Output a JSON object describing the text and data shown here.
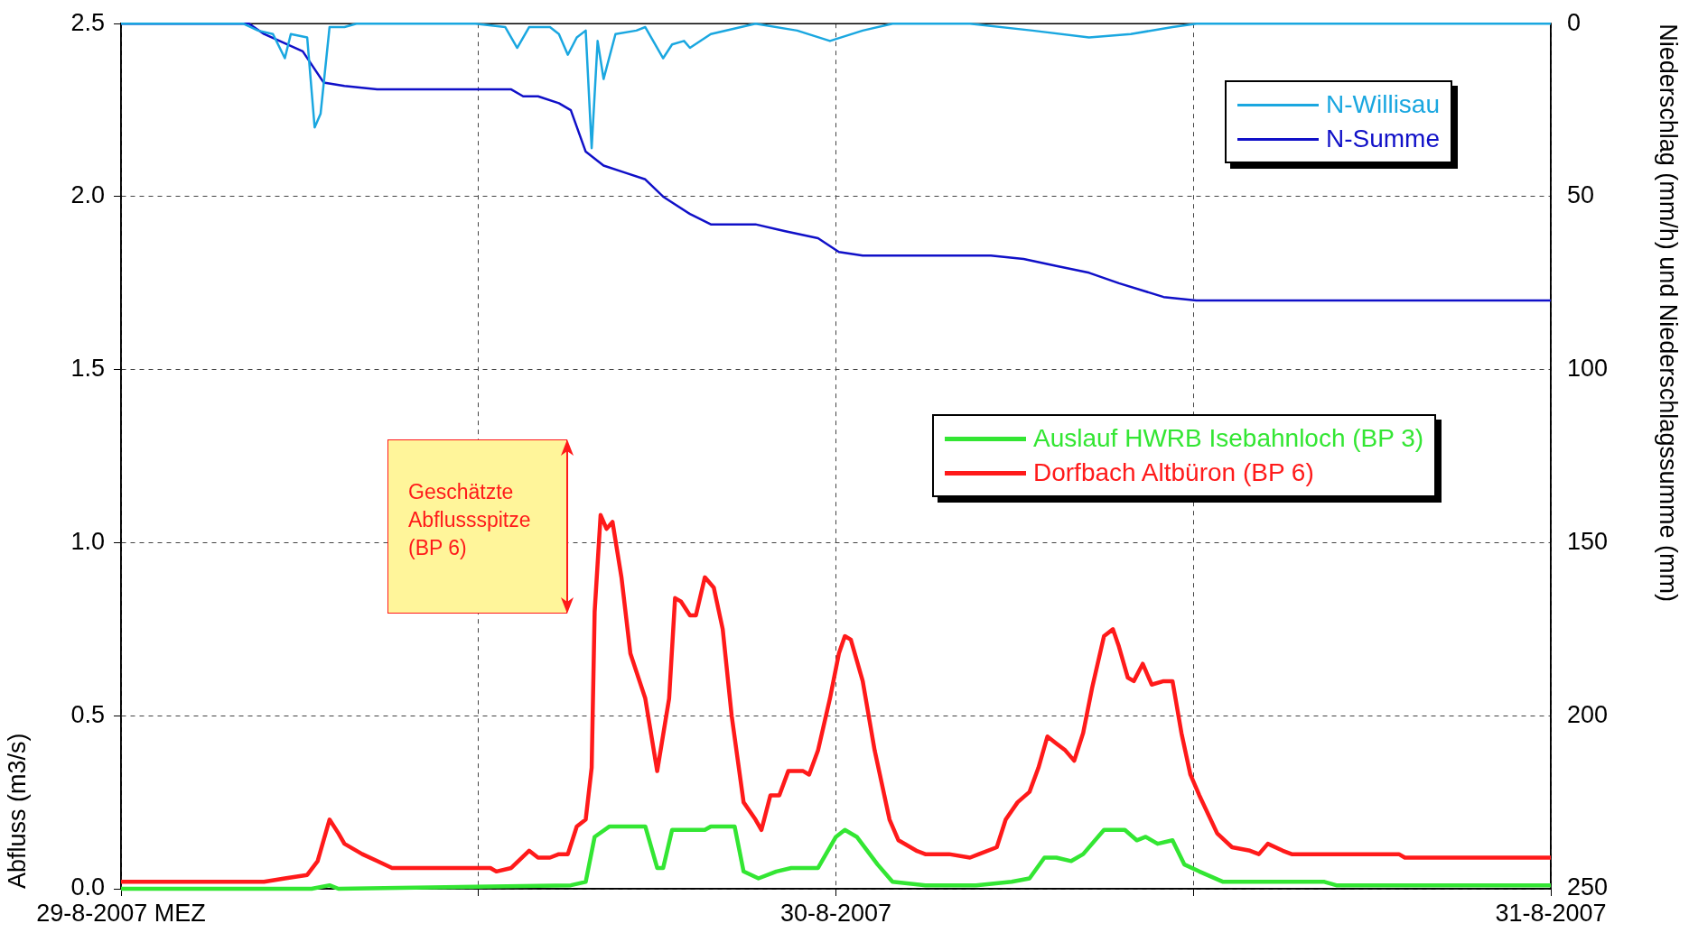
{
  "chart_data": {
    "type": "line",
    "ylabel": "Abfluss (m3/s)",
    "y2label": "Niederschlag (mm/h) und Niederschlagssumme (mm)",
    "xlim": [
      "2007-08-29T00:00",
      "2007-08-31T00:00"
    ],
    "xticks": [
      {
        "value": "2007-08-29T00:00",
        "label": "29-8-2007 MEZ"
      },
      {
        "value": "2007-08-29T12:00",
        "label": null
      },
      {
        "value": "2007-08-30T00:00",
        "label": "30-8-2007"
      },
      {
        "value": "2007-08-30T12:00",
        "label": null
      },
      {
        "value": "2007-08-31T00:00",
        "label": "31-8-2007"
      }
    ],
    "ylim": [
      0,
      2.5
    ],
    "yticks": [
      {
        "value": 0,
        "label": "0.0"
      },
      {
        "value": 0.5,
        "label": "0.5"
      },
      {
        "value": 1,
        "label": "1.0"
      },
      {
        "value": 1.5,
        "label": "1.5"
      },
      {
        "value": 2,
        "label": "2.0"
      },
      {
        "value": 2.5,
        "label": "2.5"
      }
    ],
    "y2lim": [
      250,
      0
    ],
    "y2ticks": [
      0,
      50,
      100,
      150,
      200,
      250
    ],
    "grid": true,
    "legend": "top right",
    "marker": "none",
    "line_style": "solid",
    "annotations": [
      "Geschätzte\nAbflussspitze\n(BP 6)"
    ],
    "series": [
      {
        "name": "N-Willisau",
        "color": "#1aa7e0",
        "axis": "y2",
        "x": [
          "2007-08-29T00:00",
          "2007-08-29T04:06",
          "2007-08-29T04:36",
          "2007-08-29T05:06",
          "2007-08-29T05:30",
          "2007-08-29T05:42",
          "2007-08-29T06:15",
          "2007-08-29T06:30",
          "2007-08-29T06:42",
          "2007-08-29T07:00",
          "2007-08-29T07:30",
          "2007-08-29T07:54",
          "2007-08-29T11:54",
          "2007-08-29T12:54",
          "2007-08-29T13:18",
          "2007-08-29T13:42",
          "2007-08-29T14:24",
          "2007-08-29T14:42",
          "2007-08-29T15:00",
          "2007-08-29T15:18",
          "2007-08-29T15:36",
          "2007-08-29T15:48",
          "2007-08-29T16:00",
          "2007-08-29T16:12",
          "2007-08-29T16:36",
          "2007-08-29T17:18",
          "2007-08-29T17:36",
          "2007-08-29T18:12",
          "2007-08-29T18:30",
          "2007-08-29T18:54",
          "2007-08-29T19:06",
          "2007-08-29T19:48",
          "2007-08-29T21:18",
          "2007-08-29T22:42",
          "2007-08-29T23:48",
          "2007-08-30T00:54",
          "2007-08-30T01:54",
          "2007-08-30T04:30",
          "2007-08-30T06:36",
          "2007-08-30T08:30",
          "2007-08-30T09:54",
          "2007-08-30T11:18",
          "2007-08-30T12:06",
          "2007-08-31T00:00"
        ],
        "values": [
          0,
          0,
          2,
          3,
          10,
          3,
          4,
          30,
          26,
          1,
          1,
          0,
          0,
          1,
          7,
          1,
          1,
          3,
          9,
          4,
          2,
          36,
          5,
          16,
          3,
          2,
          1,
          10,
          6,
          5,
          7,
          3,
          0,
          2,
          5,
          2,
          0,
          0,
          2,
          4,
          3,
          1,
          0,
          0
        ]
      },
      {
        "name": "N-Summe",
        "color": "#1010c8",
        "axis": "y2",
        "x": [
          "2007-08-29T00:00",
          "2007-08-29T04:18",
          "2007-08-29T04:48",
          "2007-08-29T06:06",
          "2007-08-29T06:48",
          "2007-08-29T07:30",
          "2007-08-29T08:36",
          "2007-08-29T11:06",
          "2007-08-29T13:06",
          "2007-08-29T13:30",
          "2007-08-29T14:00",
          "2007-08-29T14:42",
          "2007-08-29T15:06",
          "2007-08-29T15:36",
          "2007-08-29T16:12",
          "2007-08-29T16:54",
          "2007-08-29T17:36",
          "2007-08-29T18:12",
          "2007-08-29T19:06",
          "2007-08-29T19:48",
          "2007-08-29T21:18",
          "2007-08-29T22:18",
          "2007-08-29T23:24",
          "2007-08-30T00:06",
          "2007-08-30T00:54",
          "2007-08-30T05:12",
          "2007-08-30T06:18",
          "2007-08-30T07:24",
          "2007-08-30T08:30",
          "2007-08-30T09:30",
          "2007-08-30T11:00",
          "2007-08-30T12:06",
          "2007-08-31T00:00"
        ],
        "values": [
          0,
          0,
          3,
          8,
          17,
          18,
          19,
          19,
          19,
          21,
          21,
          23,
          25,
          37,
          41,
          43,
          45,
          50,
          55,
          58,
          58,
          60,
          62,
          66,
          67,
          67,
          68,
          70,
          72,
          75,
          79,
          80,
          80
        ]
      },
      {
        "name": "Auslauf HWRB Isebahnloch (BP 3)",
        "color": "#33e633",
        "x": [
          "2007-08-29T00:00",
          "2007-08-29T06:24",
          "2007-08-29T07:00",
          "2007-08-29T07:18",
          "2007-08-29T15:06",
          "2007-08-29T15:36",
          "2007-08-29T15:54",
          "2007-08-29T16:24",
          "2007-08-29T17:36",
          "2007-08-29T18:00",
          "2007-08-29T18:12",
          "2007-08-29T18:30",
          "2007-08-29T19:36",
          "2007-08-29T19:48",
          "2007-08-29T20:36",
          "2007-08-29T20:54",
          "2007-08-29T21:24",
          "2007-08-29T22:00",
          "2007-08-29T22:30",
          "2007-08-29T23:24",
          "2007-08-30T00:00",
          "2007-08-30T00:18",
          "2007-08-30T00:42",
          "2007-08-30T01:24",
          "2007-08-30T01:54",
          "2007-08-30T03:00",
          "2007-08-30T04:42",
          "2007-08-30T05:54",
          "2007-08-30T06:30",
          "2007-08-30T07:00",
          "2007-08-30T07:24",
          "2007-08-30T07:54",
          "2007-08-30T08:18",
          "2007-08-30T09:00",
          "2007-08-30T09:42",
          "2007-08-30T10:06",
          "2007-08-30T10:24",
          "2007-08-30T10:48",
          "2007-08-30T11:18",
          "2007-08-30T11:42",
          "2007-08-30T12:12",
          "2007-08-30T13:00",
          "2007-08-30T16:24",
          "2007-08-30T16:48",
          "2007-08-31T00:00"
        ],
        "values": [
          0,
          0,
          0.01,
          0,
          0.01,
          0.02,
          0.15,
          0.18,
          0.18,
          0.06,
          0.06,
          0.17,
          0.17,
          0.18,
          0.18,
          0.05,
          0.03,
          0.05,
          0.06,
          0.06,
          0.15,
          0.17,
          0.15,
          0.07,
          0.02,
          0.01,
          0.01,
          0.02,
          0.03,
          0.09,
          0.09,
          0.08,
          0.1,
          0.17,
          0.17,
          0.14,
          0.15,
          0.13,
          0.14,
          0.07,
          0.05,
          0.02,
          0.02,
          0.01,
          0.01
        ]
      },
      {
        "name": "Dorfbach Altbüron (BP 6)",
        "color": "#ff1a1a",
        "x": [
          "2007-08-29T00:00",
          "2007-08-29T04:48",
          "2007-08-29T05:30",
          "2007-08-29T06:15",
          "2007-08-29T06:36",
          "2007-08-29T07:00",
          "2007-08-29T07:18",
          "2007-08-29T07:30",
          "2007-08-29T08:06",
          "2007-08-29T08:36",
          "2007-08-29T09:06",
          "2007-08-29T10:24",
          "2007-08-29T12:24",
          "2007-08-29T12:36",
          "2007-08-29T13:06",
          "2007-08-29T13:42",
          "2007-08-29T14:00",
          "2007-08-29T14:24",
          "2007-08-29T14:42",
          "2007-08-29T15:00",
          "2007-08-29T15:18",
          "2007-08-29T15:36",
          "2007-08-29T15:48",
          "2007-08-29T15:54",
          "2007-08-29T16:06",
          "2007-08-29T16:18",
          "2007-08-29T16:30",
          "2007-08-29T16:48",
          "2007-08-29T17:06",
          "2007-08-29T17:36",
          "2007-08-29T18:00",
          "2007-08-29T18:24",
          "2007-08-29T18:36",
          "2007-08-29T18:48",
          "2007-08-29T19:06",
          "2007-08-29T19:18",
          "2007-08-29T19:36",
          "2007-08-29T19:54",
          "2007-08-29T20:12",
          "2007-08-29T20:30",
          "2007-08-29T20:54",
          "2007-08-29T21:18",
          "2007-08-29T21:30",
          "2007-08-29T21:48",
          "2007-08-29T22:06",
          "2007-08-29T22:24",
          "2007-08-29T22:54",
          "2007-08-29T23:06",
          "2007-08-29T23:24",
          "2007-08-29T23:48",
          "2007-08-30T00:06",
          "2007-08-30T00:18",
          "2007-08-30T00:30",
          "2007-08-30T00:54",
          "2007-08-30T01:18",
          "2007-08-30T01:48",
          "2007-08-30T02:06",
          "2007-08-30T02:42",
          "2007-08-30T03:00",
          "2007-08-30T03:48",
          "2007-08-30T04:30",
          "2007-08-30T04:48",
          "2007-08-30T05:24",
          "2007-08-30T05:42",
          "2007-08-30T06:06",
          "2007-08-30T06:30",
          "2007-08-30T06:48",
          "2007-08-30T07:06",
          "2007-08-30T07:24",
          "2007-08-30T07:42",
          "2007-08-30T08:00",
          "2007-08-30T08:18",
          "2007-08-30T08:36",
          "2007-08-30T09:00",
          "2007-08-30T09:18",
          "2007-08-30T09:30",
          "2007-08-30T09:48",
          "2007-08-30T10:00",
          "2007-08-30T10:18",
          "2007-08-30T10:36",
          "2007-08-30T11:00",
          "2007-08-30T11:18",
          "2007-08-30T11:36",
          "2007-08-30T11:54",
          "2007-08-30T12:12",
          "2007-08-30T12:48",
          "2007-08-30T13:18",
          "2007-08-30T13:54",
          "2007-08-30T14:12",
          "2007-08-30T14:30",
          "2007-08-30T15:00",
          "2007-08-30T15:18",
          "2007-08-30T18:54",
          "2007-08-30T19:06",
          "2007-08-31T00:00"
        ],
        "values": [
          0.02,
          0.02,
          0.03,
          0.04,
          0.08,
          0.2,
          0.16,
          0.13,
          0.1,
          0.08,
          0.06,
          0.06,
          0.06,
          0.05,
          0.06,
          0.11,
          0.09,
          0.09,
          0.1,
          0.1,
          0.18,
          0.2,
          0.35,
          0.8,
          1.08,
          1.04,
          1.06,
          0.9,
          0.68,
          0.55,
          0.34,
          0.55,
          0.84,
          0.83,
          0.79,
          0.79,
          0.9,
          0.87,
          0.75,
          0.5,
          0.25,
          0.2,
          0.17,
          0.27,
          0.27,
          0.34,
          0.34,
          0.33,
          0.4,
          0.55,
          0.68,
          0.73,
          0.72,
          0.6,
          0.4,
          0.2,
          0.14,
          0.11,
          0.1,
          0.1,
          0.09,
          0.1,
          0.12,
          0.2,
          0.25,
          0.28,
          0.35,
          0.44,
          0.42,
          0.4,
          0.37,
          0.45,
          0.58,
          0.73,
          0.75,
          0.7,
          0.61,
          0.6,
          0.65,
          0.59,
          0.6,
          0.6,
          0.45,
          0.33,
          0.27,
          0.16,
          0.12,
          0.11,
          0.1,
          0.13,
          0.11,
          0.1,
          0.1,
          0.09,
          0.09
        ]
      }
    ]
  }
}
